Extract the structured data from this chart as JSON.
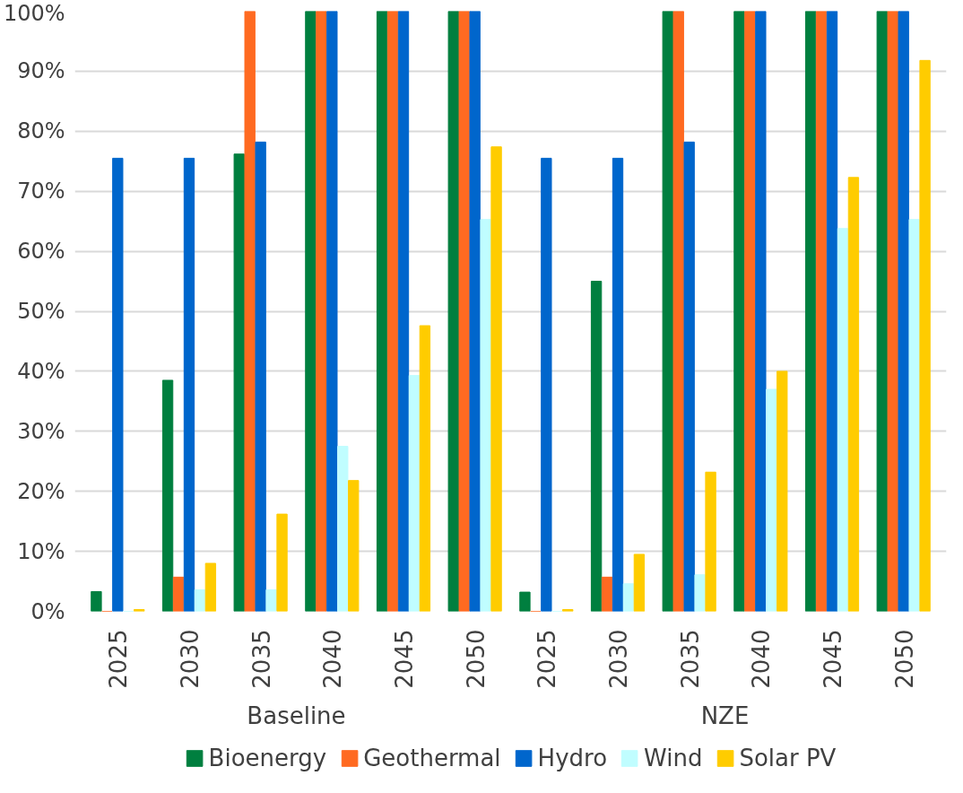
{
  "chart_data": {
    "type": "bar",
    "categories": [
      "2025",
      "2030",
      "2035",
      "2040",
      "2045",
      "2050",
      "2025",
      "2030",
      "2035",
      "2040",
      "2045",
      "2050"
    ],
    "annotations": [
      "Baseline",
      "NZE"
    ],
    "series": [
      {
        "name": "Bioenergy",
        "color": "#007f3f",
        "values": [
          3.3,
          38.5,
          76.2,
          100,
          100,
          100,
          3.2,
          55,
          100,
          100,
          100,
          100
        ]
      },
      {
        "name": "Geothermal",
        "color": "#ff6a21",
        "values": [
          0,
          5.7,
          100,
          100,
          100,
          100,
          0,
          5.7,
          100,
          100,
          100,
          100
        ]
      },
      {
        "name": "Hydro",
        "color": "#0066cc",
        "values": [
          75.5,
          75.5,
          78.2,
          100,
          100,
          100,
          75.5,
          75.5,
          78.2,
          100,
          100,
          100
        ]
      },
      {
        "name": "Wind",
        "color": "#c0fdff",
        "values": [
          0,
          3.6,
          3.6,
          27.5,
          39.3,
          65.3,
          0,
          4.6,
          6.1,
          37,
          63.8,
          65.3
        ]
      },
      {
        "name": "Solar PV",
        "color": "#ffcc00",
        "values": [
          0.3,
          8,
          16.2,
          21.8,
          47.6,
          77.4,
          0.3,
          9.5,
          23.2,
          40,
          72.3,
          91.8
        ]
      }
    ],
    "ylim": [
      0,
      100
    ],
    "yticks": [
      {
        "value": 0,
        "label": "0%"
      },
      {
        "value": 10,
        "label": "10%"
      },
      {
        "value": 20,
        "label": "20%"
      },
      {
        "value": 30,
        "label": "30%"
      },
      {
        "value": 40,
        "label": "40%"
      },
      {
        "value": 50,
        "label": "50%"
      },
      {
        "value": 60,
        "label": "60%"
      },
      {
        "value": 70,
        "label": "70%"
      },
      {
        "value": 80,
        "label": "80%"
      },
      {
        "value": 90,
        "label": "90%"
      },
      {
        "value": 100,
        "label": "100%"
      }
    ],
    "grid": "y",
    "legend": "bottom"
  }
}
